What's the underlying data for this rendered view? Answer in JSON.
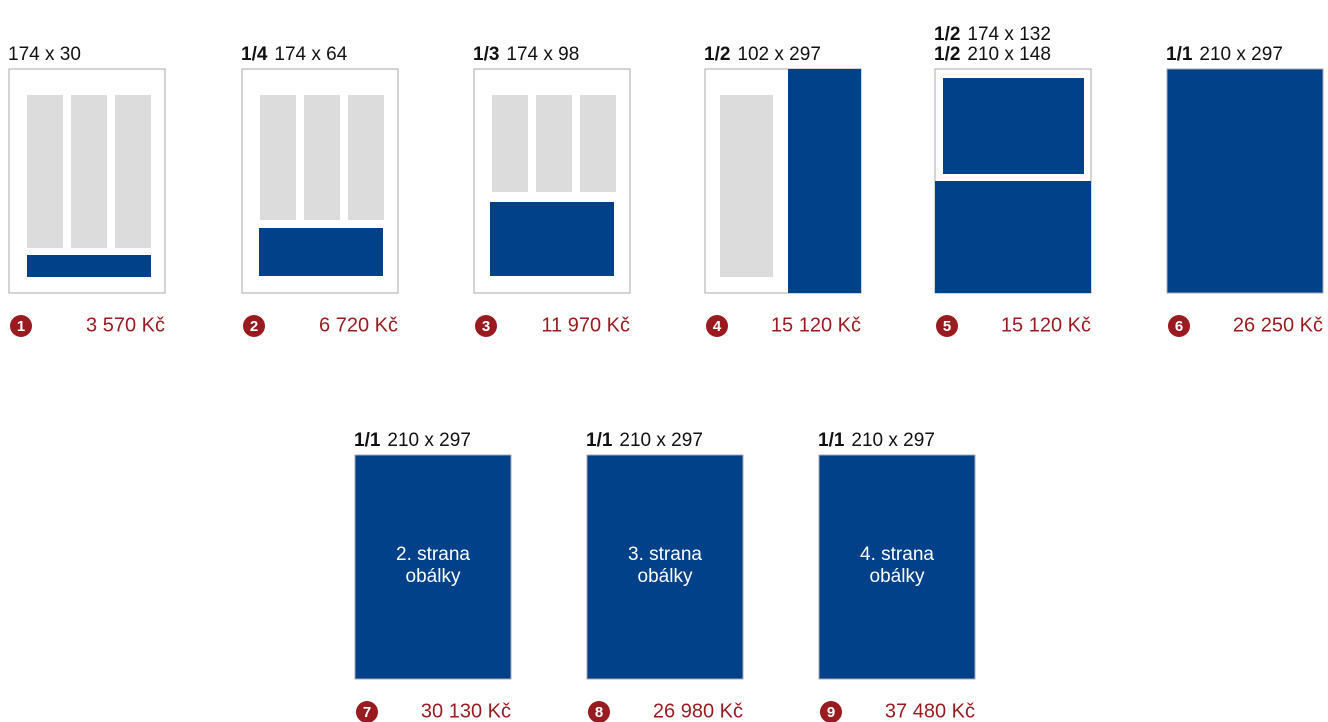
{
  "items": [
    {
      "number": "1",
      "labels": [
        {
          "size": "174 x 30"
        }
      ],
      "price": "3 570 Kč"
    },
    {
      "number": "2",
      "labels": [
        {
          "fraction": "1/4",
          "size": "174 x 64"
        }
      ],
      "price": "6 720 Kč"
    },
    {
      "number": "3",
      "labels": [
        {
          "fraction": "1/3",
          "size": "174 x 98"
        }
      ],
      "price": "11 970 Kč"
    },
    {
      "number": "4",
      "labels": [
        {
          "fraction": "1/2",
          "size": "102 x 297"
        }
      ],
      "price": "15 120 Kč"
    },
    {
      "number": "5",
      "labels": [
        {
          "fraction": "1/2",
          "size": "174 x 132"
        },
        {
          "fraction": "1/2",
          "size": "210 x 148"
        }
      ],
      "price": "15 120 Kč"
    },
    {
      "number": "6",
      "labels": [
        {
          "fraction": "1/1",
          "size": "210 x 297"
        }
      ],
      "price": "26 250 Kč"
    },
    {
      "number": "7",
      "labels": [
        {
          "fraction": "1/1",
          "size": "210 x 297"
        }
      ],
      "inner": [
        "2. strana",
        "obálky"
      ],
      "price": "30 130 Kč"
    },
    {
      "number": "8",
      "labels": [
        {
          "fraction": "1/1",
          "size": "210 x 297"
        }
      ],
      "inner": [
        "3. strana",
        "obálky"
      ],
      "price": "26 980 Kč"
    },
    {
      "number": "9",
      "labels": [
        {
          "fraction": "1/1",
          "size": "210 x 297"
        }
      ],
      "inner": [
        "4. strana",
        "obálky"
      ],
      "price": "37 480 Kč"
    }
  ]
}
